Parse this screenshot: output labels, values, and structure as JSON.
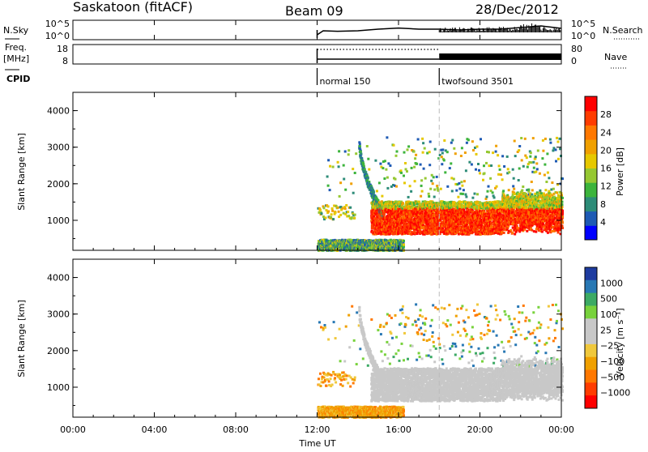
{
  "header": {
    "station": "Saskatoon (fitACF)",
    "beam": "Beam 09",
    "date": "28/Dec/2012"
  },
  "summary_panel": {
    "left_labels": {
      "nsky": "N.Sky",
      "freq_line1": "Freq.",
      "freq_line2": "[MHz]",
      "cpid": "CPID"
    },
    "right_labels": {
      "nsearch": "N.Search",
      "nave": "Nave"
    },
    "nsky_ticks": [
      "10^5",
      "10^0"
    ],
    "nsearch_ticks": [
      "10^5",
      "10^0"
    ],
    "freq_ticks": [
      "18",
      "8"
    ],
    "nave_ticks": [
      "80",
      "0"
    ],
    "cpid_modes": [
      {
        "start_hour": 12,
        "label": "normal 150"
      },
      {
        "start_hour": 18,
        "label": "twofsound 3501"
      }
    ]
  },
  "x_axis": {
    "label": "Time UT",
    "ticks": [
      "00:00",
      "04:00",
      "08:00",
      "12:00",
      "16:00",
      "20:00",
      "00:00"
    ],
    "tick_hours": [
      0,
      4,
      8,
      12,
      16,
      20,
      24
    ],
    "range_hours": [
      0,
      24
    ]
  },
  "power_panel": {
    "ylabel": "Slant Range [km]",
    "yticks": [
      "4000",
      "3000",
      "2000",
      "1000"
    ],
    "ytick_values": [
      4000,
      3000,
      2000,
      1000
    ],
    "ylim": [
      180,
      4500
    ],
    "colorbar": {
      "label": "Power [dB]",
      "ticks": [
        "28",
        "24",
        "20",
        "16",
        "12",
        "8",
        "4"
      ],
      "colors": [
        "#0000ff",
        "#1e5ab4",
        "#2d8c78",
        "#3cb43c",
        "#96c832",
        "#e6c800",
        "#f0a000",
        "#ff7800",
        "#ff3c00",
        "#ff0000"
      ]
    }
  },
  "velocity_panel": {
    "ylabel": "Slant Range [km]",
    "yticks": [
      "4000",
      "3000",
      "2000",
      "1000"
    ],
    "ytick_values": [
      4000,
      3000,
      2000,
      1000
    ],
    "ylim": [
      180,
      4500
    ],
    "colorbar": {
      "label": "Velocity [m s⁻¹]",
      "ticks": [
        "1000",
        "500",
        "100",
        "25",
        "−25",
        "−100",
        "−500",
        "−1000"
      ],
      "colors": [
        "#1e3ca0",
        "#2878b4",
        "#3caa64",
        "#78d23c",
        "#c8c8c8",
        "#c8c8c8",
        "#f0c83c",
        "#f0a000",
        "#ff7800",
        "#ff3c00",
        "#ff0000"
      ]
    }
  },
  "chart_data": [
    {
      "type": "line",
      "title": "N.Sky / N.Search",
      "x_hours": [
        12.0,
        12.3,
        13,
        14,
        15,
        16,
        17,
        18,
        19,
        20,
        21,
        22,
        23,
        24
      ],
      "series": [
        {
          "name": "N.Sky",
          "values": [
            0.2,
            0.45,
            0.42,
            0.45,
            0.55,
            0.62,
            0.55,
            0.55,
            0.5,
            0.55,
            0.55,
            0.65,
            0.75,
            0.6
          ]
        }
      ]
    },
    {
      "type": "line",
      "title": "Freq. / Nave",
      "x_hours": [
        12,
        18,
        18,
        24
      ],
      "series": [
        {
          "name": "Freq.",
          "values": [
            10.5,
            10.5,
            11.5,
            11.5
          ]
        },
        {
          "name": "Nave",
          "values": [
            67,
            67,
            40,
            40
          ]
        }
      ]
    },
    {
      "type": "heatmap",
      "title": "Power [dB]",
      "x_range_hours": [
        12,
        24
      ],
      "y_range_km": [
        180,
        4500
      ],
      "features": [
        {
          "name": "main band",
          "hours": [
            14.5,
            24
          ],
          "range_km": [
            700,
            1600
          ],
          "power_db": 28
        },
        {
          "name": "upper scatter",
          "hours": [
            12,
            24
          ],
          "range_km": [
            1500,
            3200
          ],
          "power_db": 14
        },
        {
          "name": "near-range band",
          "hours": [
            12,
            16
          ],
          "range_km": [
            180,
            500
          ],
          "power_db": 10
        }
      ]
    },
    {
      "type": "heatmap",
      "title": "Velocity [m s⁻¹]",
      "x_range_hours": [
        12,
        24
      ],
      "y_range_km": [
        180,
        4500
      ],
      "features": [
        {
          "name": "ground scatter",
          "hours": [
            14.3,
            24
          ],
          "range_km": [
            700,
            1800
          ],
          "velocity": 0
        },
        {
          "name": "upper scatter",
          "hours": [
            15,
            24
          ],
          "range_km": [
            1700,
            3200
          ],
          "velocity": -300
        },
        {
          "name": "near-range band",
          "hours": [
            12,
            16
          ],
          "range_km": [
            180,
            500
          ],
          "velocity": -150
        }
      ]
    }
  ]
}
